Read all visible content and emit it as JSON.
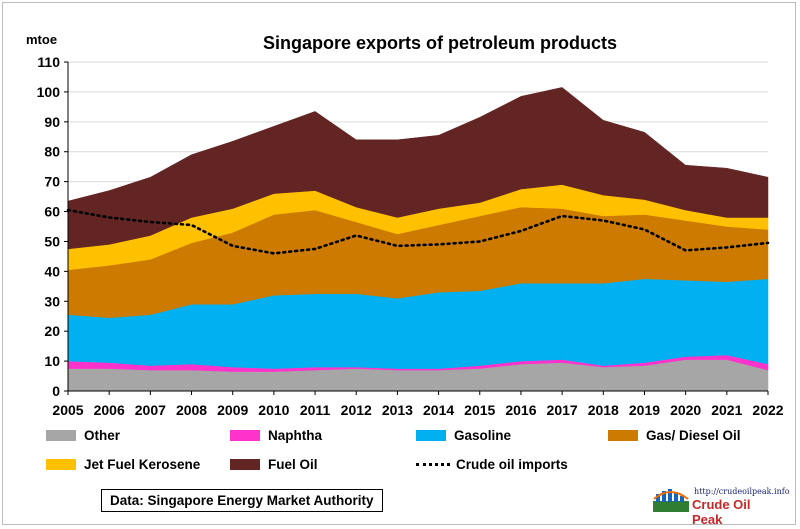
{
  "title": "Singapore exports of petroleum products",
  "unit_label": "mtoe",
  "source_label": "Data: Singapore Energy Market Authority",
  "logo": {
    "url": "http://crudeoilpeak.info",
    "name": "Crude Oil Peak"
  },
  "chart_data": {
    "type": "area",
    "stacked": true,
    "title": "Singapore exports of petroleum products",
    "ylabel": "mtoe",
    "ylim": [
      0,
      110
    ],
    "yticks": [
      0,
      10,
      20,
      30,
      40,
      50,
      60,
      70,
      80,
      90,
      100,
      110
    ],
    "grid": true,
    "legend_position": "bottom",
    "x": [
      "2005",
      "2006",
      "2007",
      "2008",
      "2009",
      "2010",
      "2011",
      "2012",
      "2013",
      "2014",
      "2015",
      "2016",
      "2017",
      "2018",
      "2019",
      "2020",
      "2021",
      "2022"
    ],
    "series": [
      {
        "name": "Other",
        "color": "#a6a6a6",
        "values": [
          7.5,
          7.5,
          7.0,
          7.0,
          6.5,
          6.5,
          7.0,
          7.5,
          7.0,
          7.0,
          7.5,
          9.0,
          9.5,
          8.0,
          8.5,
          10.5,
          10.5,
          7.0
        ]
      },
      {
        "name": "Naphtha",
        "color": "#ff33cc",
        "values": [
          2.5,
          2.0,
          1.5,
          2.0,
          1.5,
          1.0,
          1.0,
          0.5,
          0.5,
          0.5,
          1.0,
          1.0,
          1.0,
          0.5,
          1.0,
          1.0,
          1.5,
          2.0
        ]
      },
      {
        "name": "Gasoline",
        "color": "#00b0f0",
        "values": [
          15.5,
          15.0,
          17.0,
          20.0,
          21.0,
          24.5,
          24.5,
          24.5,
          23.5,
          25.5,
          25.0,
          26.0,
          25.5,
          27.5,
          28.0,
          25.5,
          24.5,
          28.5
        ]
      },
      {
        "name": "Gas/ Diesel Oil",
        "color": "#cc7a00",
        "values": [
          15.0,
          17.5,
          18.5,
          20.5,
          24.0,
          27.0,
          28.0,
          24.0,
          21.5,
          22.5,
          25.0,
          25.5,
          25.0,
          22.5,
          21.5,
          20.0,
          18.5,
          16.5
        ]
      },
      {
        "name": "Jet Fuel Kerosene",
        "color": "#ffc000",
        "values": [
          7.0,
          7.0,
          8.0,
          8.5,
          8.0,
          7.0,
          6.5,
          5.0,
          5.5,
          5.5,
          4.5,
          6.0,
          8.0,
          7.0,
          5.0,
          3.5,
          3.0,
          4.0
        ]
      },
      {
        "name": "Fuel Oil",
        "color": "#632523",
        "values": [
          16.0,
          18.0,
          19.5,
          21.0,
          22.5,
          22.5,
          26.5,
          22.5,
          26.0,
          24.5,
          28.5,
          31.0,
          32.5,
          25.0,
          22.5,
          15.0,
          16.5,
          13.5
        ]
      }
    ],
    "line_series": {
      "name": "Crude oil imports",
      "color": "#000000",
      "style": "dotted",
      "values": [
        60.5,
        58.0,
        56.5,
        55.5,
        48.5,
        46.0,
        47.5,
        52.0,
        48.5,
        49.0,
        50.0,
        53.5,
        58.5,
        57.0,
        54.0,
        47.0,
        48.0,
        49.5
      ]
    }
  }
}
